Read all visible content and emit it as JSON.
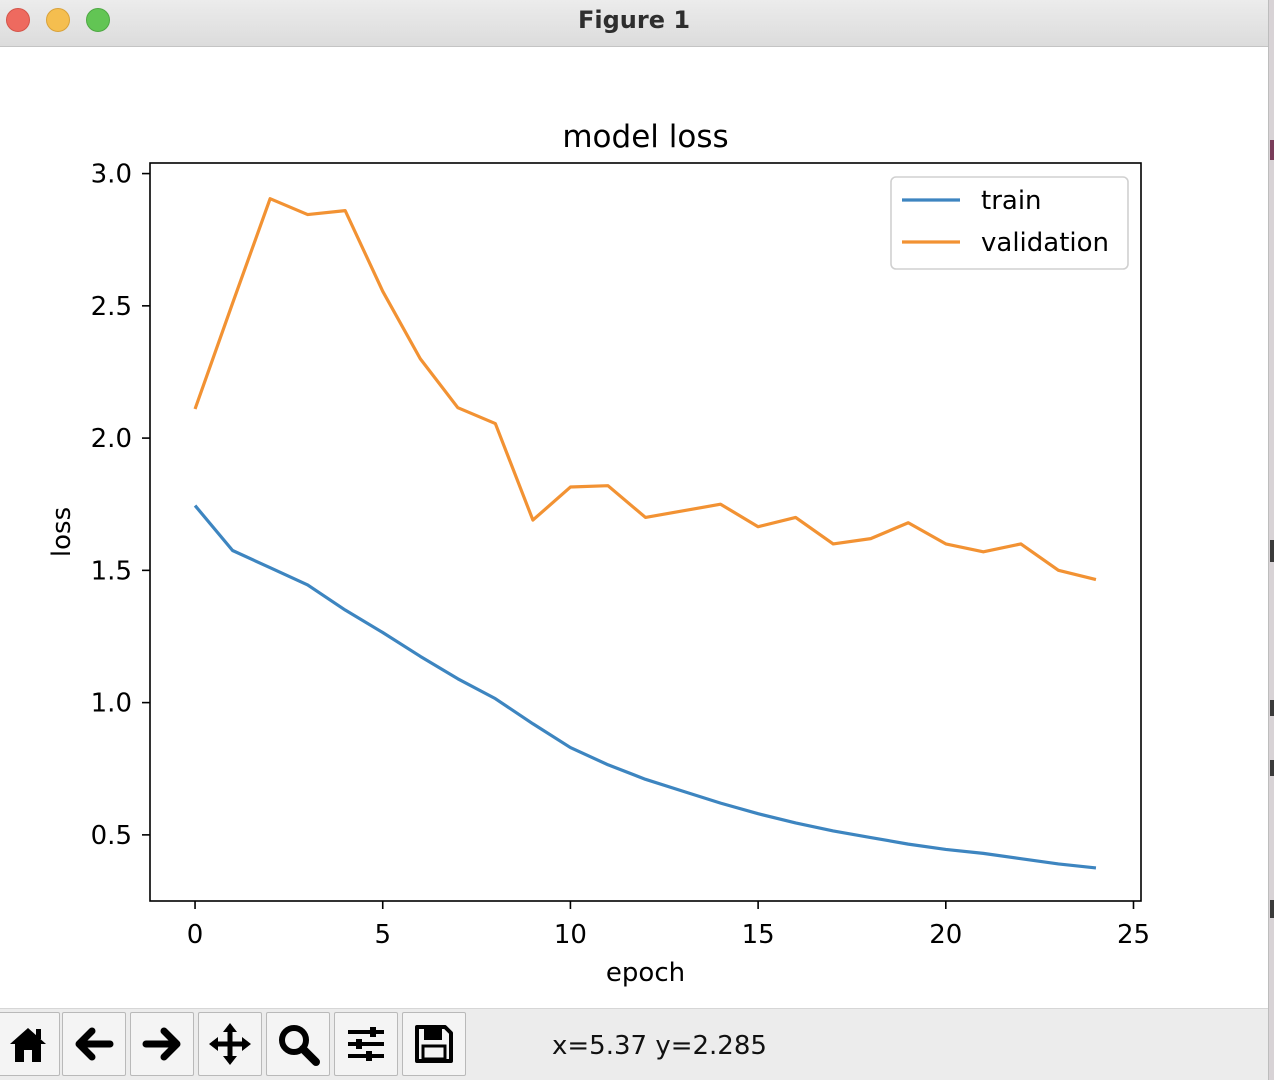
{
  "window": {
    "title": "Figure 1"
  },
  "toolbar": {
    "coords": "x=5.37 y=2.285",
    "buttons": [
      "home-icon",
      "back-arrow-icon",
      "forward-arrow-icon",
      "pan-icon",
      "zoom-icon",
      "configure-subplots-icon",
      "save-icon"
    ]
  },
  "colors": {
    "train": "#3d85c0",
    "validation": "#f29233"
  },
  "chart_data": {
    "type": "line",
    "title": "model loss",
    "xlabel": "epoch",
    "ylabel": "loss",
    "xlim": [
      -1.2,
      25.2
    ],
    "ylim": [
      0.25,
      3.04
    ],
    "xticks": [
      0,
      5,
      10,
      15,
      20,
      25
    ],
    "yticks": [
      0.5,
      1.0,
      1.5,
      2.0,
      2.5,
      3.0
    ],
    "xtick_labels": [
      "0",
      "5",
      "10",
      "15",
      "20",
      "25"
    ],
    "ytick_labels": [
      "0.5",
      "1.0",
      "1.5",
      "2.0",
      "2.5",
      "3.0"
    ],
    "grid": false,
    "legend_position": "top-right",
    "x": [
      0,
      1,
      2,
      3,
      4,
      5,
      6,
      7,
      8,
      9,
      10,
      11,
      12,
      13,
      14,
      15,
      16,
      17,
      18,
      19,
      20,
      21,
      22,
      23,
      24
    ],
    "series": [
      {
        "name": "train",
        "values": [
          1.745,
          1.575,
          1.51,
          1.445,
          1.35,
          1.265,
          1.175,
          1.09,
          1.015,
          0.92,
          0.83,
          0.765,
          0.71,
          0.665,
          0.62,
          0.58,
          0.545,
          0.515,
          0.49,
          0.465,
          0.445,
          0.43,
          0.41,
          0.39,
          0.375
        ]
      },
      {
        "name": "validation",
        "values": [
          2.11,
          2.51,
          2.905,
          2.845,
          2.86,
          2.555,
          2.3,
          2.115,
          2.055,
          1.69,
          1.815,
          1.82,
          1.7,
          1.725,
          1.75,
          1.665,
          1.7,
          1.6,
          1.62,
          1.68,
          1.6,
          1.57,
          1.6,
          1.5,
          1.465
        ]
      }
    ]
  }
}
